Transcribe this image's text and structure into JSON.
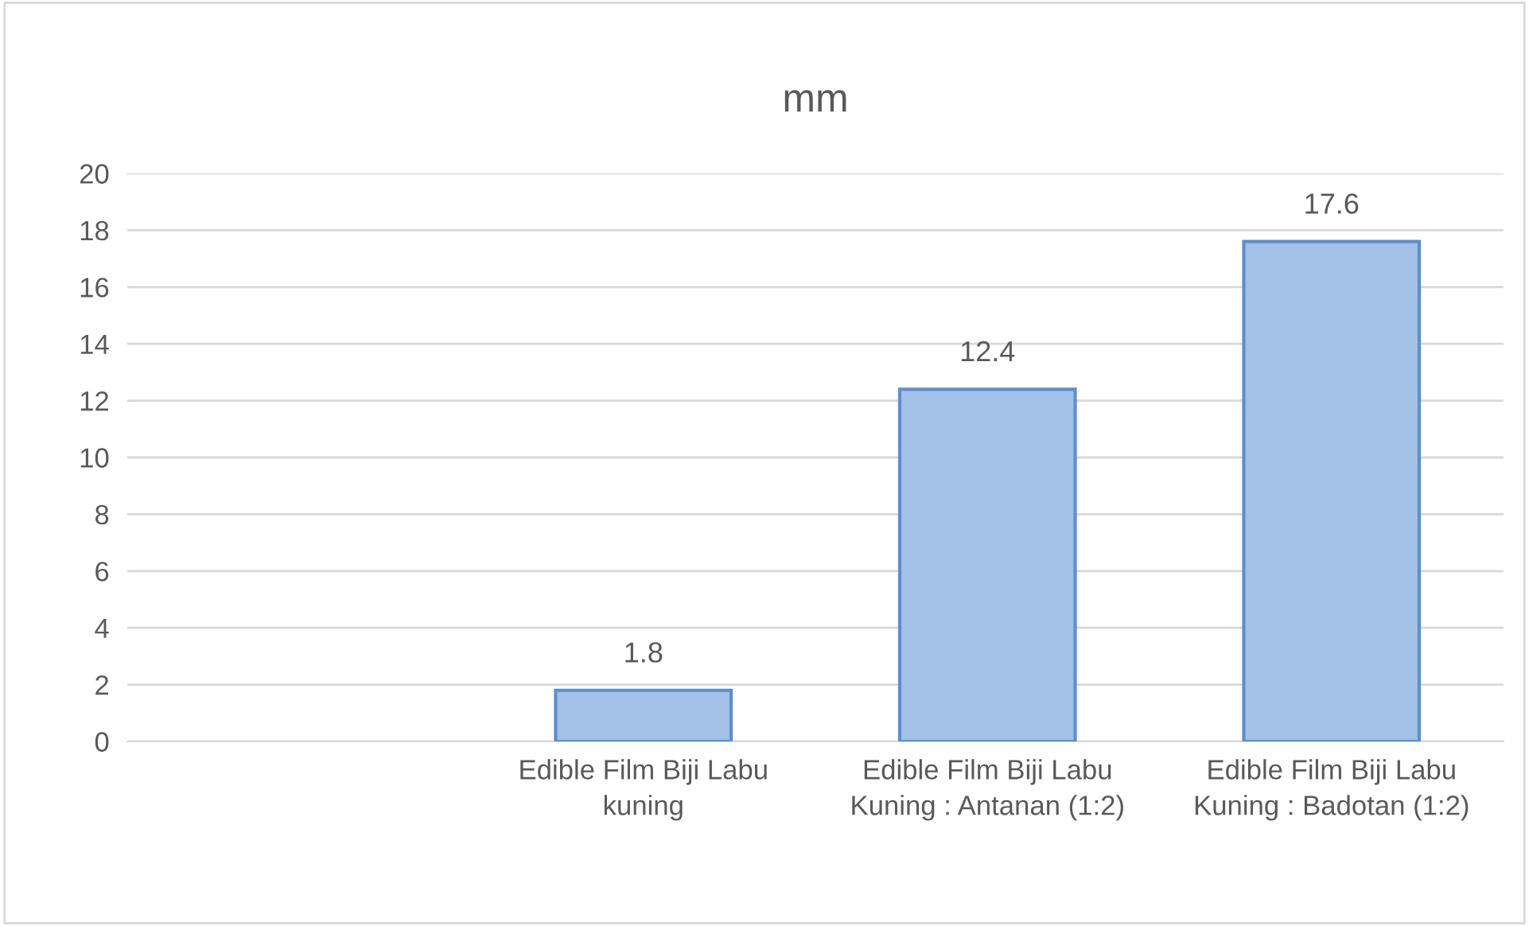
{
  "chart_data": {
    "type": "bar",
    "title": "mm",
    "categories": [
      null,
      "Edible Film Biji Labu kuning",
      "Edible Film Biji Labu Kuning : Antanan (1:2)",
      "Edible Film Biji Labu Kuning : Badotan (1:2)"
    ],
    "values": [
      null,
      1.8,
      12.4,
      17.6
    ],
    "color": "#a3c1e6",
    "ylim": [
      0,
      20
    ],
    "yticks": [
      0,
      2,
      4,
      6,
      8,
      10,
      12,
      14,
      16,
      18,
      20
    ],
    "grid": "y",
    "data_labels": true
  }
}
